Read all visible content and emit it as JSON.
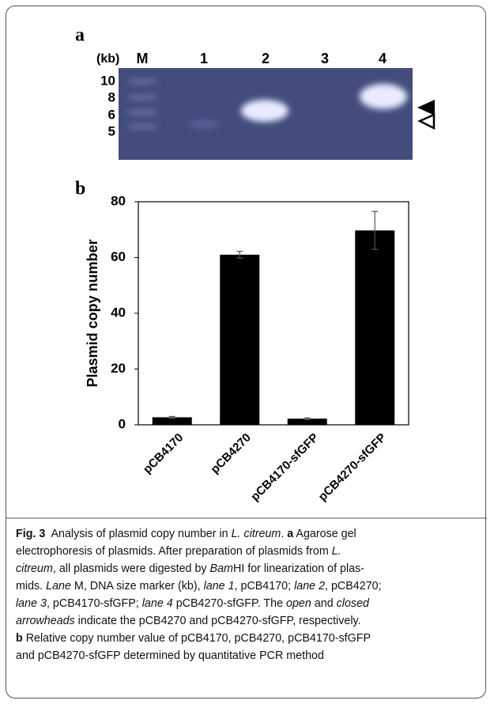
{
  "panel_a": {
    "label": "a",
    "unit": "(kb)",
    "lanes": [
      "M",
      "1",
      "2",
      "3",
      "4"
    ],
    "sizes": [
      "10",
      "8",
      "6",
      "5"
    ]
  },
  "chart_data": {
    "type": "bar",
    "panel_label": "b",
    "y_label": "Plasmid copy number",
    "categories": [
      "pCB4170",
      "pCB4270",
      "pCB4170-sfGFP",
      "pCB4270-sfGFP"
    ],
    "values": [
      2.7,
      61,
      2.2,
      69.7
    ],
    "errors": [
      0.3,
      1.2,
      0.3,
      6.8
    ],
    "color": "#000000",
    "ylim": [
      0,
      80
    ],
    "yticks": [
      0,
      20,
      40,
      60,
      80
    ]
  },
  "caption": {
    "lines": [
      [
        {
          "text": "Fig. 3",
          "style": "bold"
        },
        {
          "text": "  Analysis of plasmid copy number in "
        },
        {
          "text": "L. citreum",
          "style": "italic"
        },
        {
          "text": ". "
        },
        {
          "text": "a",
          "style": "bold"
        },
        {
          "text": " Agarose gel"
        }
      ],
      [
        {
          "text": "electrophoresis of plasmids. After preparation of plasmids from "
        },
        {
          "text": "L.",
          "style": "italic"
        }
      ],
      [
        {
          "text": "citreum",
          "style": "italic"
        },
        {
          "text": ", all plasmids were digested by "
        },
        {
          "text": "Bam",
          "style": "italic"
        },
        {
          "text": "HI for linearization of plas-"
        }
      ],
      [
        {
          "text": "mids. "
        },
        {
          "text": "Lane",
          "style": "italic"
        },
        {
          "text": " M, DNA size marker (kb), "
        },
        {
          "text": "lane 1",
          "style": "italic"
        },
        {
          "text": ", pCB4170; "
        },
        {
          "text": "lane 2",
          "style": "italic"
        },
        {
          "text": ", pCB4270;"
        }
      ],
      [
        {
          "text": "lane 3",
          "style": "italic"
        },
        {
          "text": ", pCB4170-sfGFP; "
        },
        {
          "text": "lane 4",
          "style": "italic"
        },
        {
          "text": " pCB4270-sfGFP. The "
        },
        {
          "text": "open",
          "style": "italic"
        },
        {
          "text": " and "
        },
        {
          "text": "closed",
          "style": "italic"
        }
      ],
      [
        {
          "text": "arrowheads",
          "style": "italic"
        },
        {
          "text": " indicate the pCB4270 and pCB4270-sfGFP, respectively."
        }
      ],
      [
        {
          "text": "b",
          "style": "bold"
        },
        {
          "text": " Relative copy number value of pCB4170, pCB4270, pCB4170-sfGFP"
        }
      ],
      [
        {
          "text": "and pCB4270-sfGFP determined by quantitative PCR method"
        }
      ]
    ]
  }
}
